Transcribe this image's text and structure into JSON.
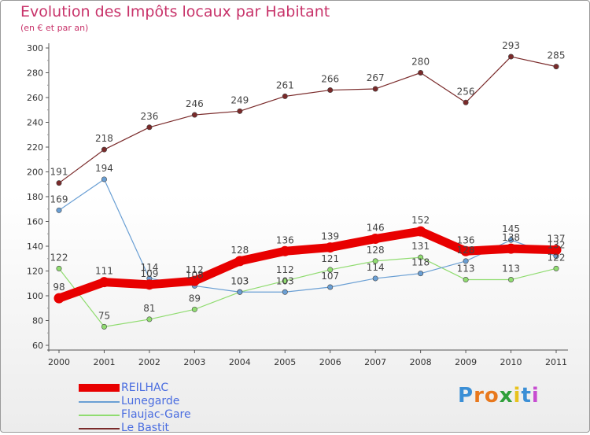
{
  "title": "Evolution des Impôts locaux par Habitant",
  "subtitle": "(en € et par an)",
  "logo": {
    "text": "Proxiti",
    "letters": [
      "P",
      "r",
      "o",
      "x",
      "i",
      "t",
      "i"
    ],
    "colors": [
      "#3b8fd6",
      "#e8781d",
      "#e8781d",
      "#2f9f3b",
      "#e8c21d",
      "#3b8fd6",
      "#c74dd1"
    ]
  },
  "chart_data": {
    "type": "line",
    "title": "Evolution des Impôts locaux par Habitant",
    "subtitle": "(en € et par an)",
    "xlabel": "",
    "ylabel": "",
    "categories": [
      "2000",
      "2001",
      "2002",
      "2003",
      "2004",
      "2005",
      "2006",
      "2007",
      "2008",
      "2009",
      "2010",
      "2011"
    ],
    "ylim": [
      60,
      300
    ],
    "yticks": [
      60,
      80,
      100,
      120,
      140,
      160,
      180,
      200,
      220,
      240,
      260,
      280,
      300
    ],
    "grid": false,
    "legend_position": "bottom-left",
    "series": [
      {
        "name": "REILHAC",
        "color": "#e80000",
        "emphasis": true,
        "values": [
          98,
          111,
          109,
          112,
          128,
          136,
          139,
          146,
          152,
          136,
          138,
          137
        ],
        "labels": [
          "98",
          "111",
          "109",
          "112",
          "128",
          "136",
          "139",
          "146",
          "152",
          "136",
          "138",
          "137"
        ]
      },
      {
        "name": "Lunegarde",
        "color": "#6a9fd4",
        "emphasis": false,
        "values": [
          169,
          194,
          114,
          108,
          103,
          103,
          107,
          114,
          118,
          128,
          145,
          132
        ],
        "labels": [
          "169",
          "194",
          "114",
          "108",
          "103",
          "103",
          "107",
          "114",
          "118",
          "128",
          "145",
          "132"
        ]
      },
      {
        "name": "Flaujac-Gare",
        "color": "#90dc70",
        "emphasis": false,
        "values": [
          122,
          75,
          81,
          89,
          103,
          112,
          121,
          128,
          131,
          113,
          113,
          122
        ],
        "labels": [
          "122",
          "75",
          "81",
          "89",
          "103",
          "112",
          "121",
          "128",
          "131",
          "113",
          "113",
          "122"
        ]
      },
      {
        "name": "Le Bastit",
        "color": "#7a2a2a",
        "emphasis": false,
        "values": [
          191,
          218,
          236,
          246,
          249,
          261,
          266,
          267,
          280,
          256,
          293,
          285
        ],
        "labels": [
          "191",
          "218",
          "236",
          "246",
          "249",
          "261",
          "266",
          "267",
          "280",
          "256",
          "293",
          "285"
        ]
      }
    ]
  }
}
